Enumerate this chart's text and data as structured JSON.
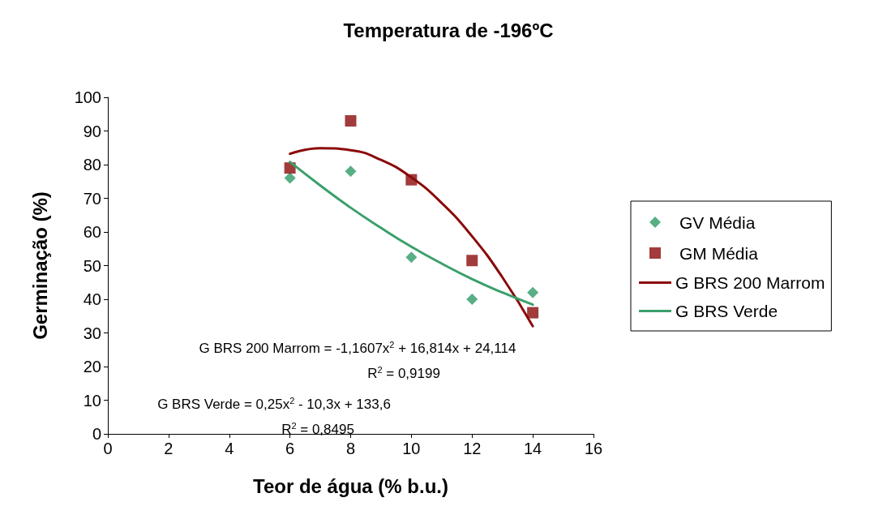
{
  "chart_data": {
    "type": "scatter",
    "title": "Temperatura de -196ºC",
    "xlabel": "Teor de água (% b.u.)",
    "ylabel": "Germinação (%)",
    "xlim": [
      0,
      16
    ],
    "xticks": [
      0,
      2,
      4,
      6,
      8,
      10,
      12,
      14,
      16
    ],
    "ylim": [
      0,
      100
    ],
    "yticks": [
      0,
      10,
      20,
      30,
      40,
      50,
      60,
      70,
      80,
      90,
      100
    ],
    "grid": false,
    "legend": "right",
    "annotations": [
      "G BRS 200 Marrom = -1,1607x$^{2}$ + 16,814x + 24,114",
      "R$^{2}$ = 0,9199",
      "G BRS Verde = 0,25x$^{2}$ - 10,3x + 133,6",
      "R$^{2}$ = 0,8495"
    ],
    "series": [
      {
        "name": "GV Média",
        "marker": "diamond",
        "color": "#2e9b67",
        "x": [
          6,
          8,
          10,
          12,
          14
        ],
        "values": [
          76,
          78,
          52.5,
          40,
          42
        ]
      },
      {
        "name": "GM Média",
        "marker": "square",
        "color": "#8b0a0a",
        "x": [
          6,
          8,
          10,
          12,
          14
        ],
        "values": [
          79,
          93,
          75.5,
          51.5,
          36
        ]
      },
      {
        "name": "G BRS 200 Marrom",
        "type": "line",
        "marker": "none",
        "color": "#8b0a0a",
        "x": [
          6,
          7,
          8,
          9,
          10,
          11,
          12,
          13,
          14
        ],
        "values": [
          83.2,
          84.9,
          84.3,
          81.4,
          76.2,
          68.6,
          58.7,
          46.5,
          32
        ]
      },
      {
        "name": "G BRS Verde",
        "type": "line",
        "marker": "none",
        "color": "#3aa06a",
        "x": [
          6,
          7,
          8,
          9,
          10,
          11,
          12,
          13,
          14
        ],
        "values": [
          80.8,
          73.8,
          67.2,
          61.2,
          55.6,
          50.6,
          46,
          42,
          38.4
        ]
      }
    ]
  }
}
